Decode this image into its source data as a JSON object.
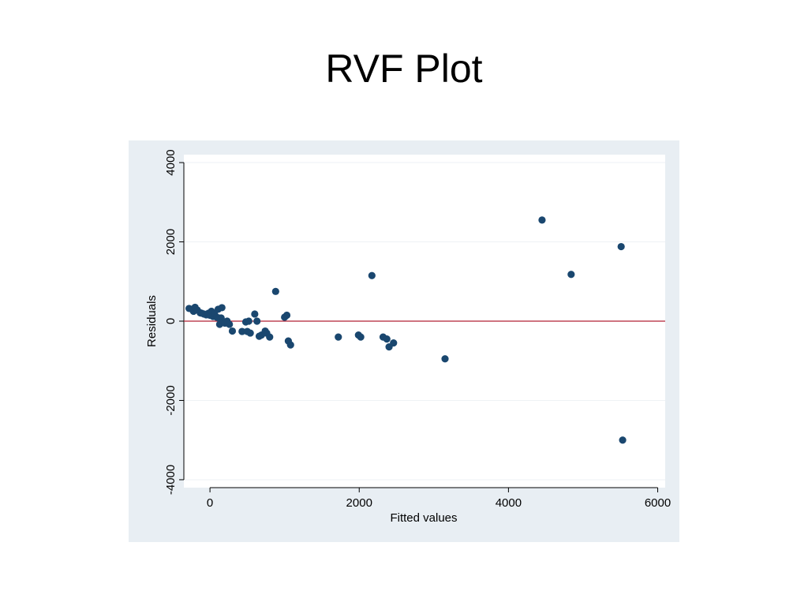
{
  "slide": {
    "title": "RVF Plot"
  },
  "chart_data": {
    "type": "scatter",
    "title": "",
    "xlabel": "Fitted values",
    "ylabel": "Residuals",
    "xlim": [
      -350,
      6100
    ],
    "ylim": [
      -4200,
      4200
    ],
    "x_ticks": [
      0,
      2000,
      4000,
      6000
    ],
    "y_ticks": [
      -4000,
      -2000,
      0,
      2000,
      4000
    ],
    "grid": true,
    "reference_line": {
      "y": 0,
      "color": "#b22234"
    },
    "colors": {
      "panel_background": "#e8eef3",
      "plot_background": "#ffffff",
      "marker": "#1a476f",
      "gridline": "#eef2f5"
    },
    "series": [
      {
        "x": [
          -280,
          -240,
          -220,
          -200,
          -170,
          -130,
          -110,
          -80,
          -50,
          -20,
          0,
          20,
          40,
          60,
          90,
          110,
          120,
          130,
          150,
          160,
          180,
          200,
          230,
          260,
          300,
          430,
          480,
          500,
          520,
          540,
          600,
          630,
          660,
          690,
          740,
          760,
          800,
          880,
          1000,
          1030,
          1050,
          1080,
          1720,
          1990,
          2020,
          2170,
          2320,
          2370,
          2400,
          2460,
          3150,
          4450,
          4840,
          5510,
          5530
        ],
        "y": [
          320,
          300,
          250,
          350,
          280,
          210,
          200,
          180,
          160,
          200,
          150,
          250,
          120,
          190,
          100,
          300,
          80,
          -80,
          80,
          340,
          -20,
          -50,
          0,
          -80,
          -250,
          -260,
          -20,
          -260,
          0,
          -300,
          180,
          0,
          -380,
          -350,
          -250,
          -300,
          -400,
          750,
          100,
          150,
          -500,
          -600,
          -400,
          -350,
          -400,
          1150,
          -400,
          -450,
          -650,
          -550,
          -950,
          2550,
          1180,
          1880,
          -3000
        ]
      }
    ]
  }
}
